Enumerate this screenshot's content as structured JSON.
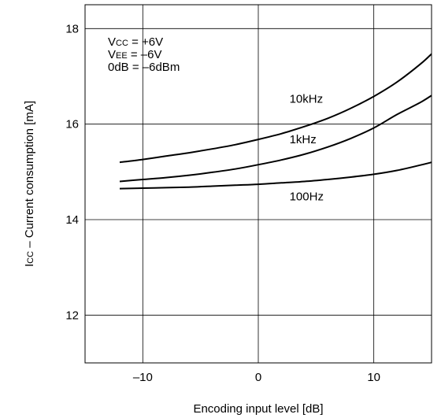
{
  "chart_data": {
    "type": "line",
    "title": "",
    "xlabel": "Encoding input level [dB]",
    "ylabel": {
      "symbol": "I",
      "subscript": "CC",
      "text": " – Current consumption [mA]"
    },
    "xlim": [
      -15,
      15
    ],
    "ylim": [
      11,
      18.5
    ],
    "xticks": [
      -10,
      0,
      10
    ],
    "xtick_labels": [
      "–10",
      "0",
      "10"
    ],
    "yticks": [
      12,
      14,
      16,
      18
    ],
    "ytick_labels": [
      "12",
      "14",
      "16",
      "18"
    ],
    "grid": true,
    "conditions": [
      {
        "symbol": "V",
        "subscript": "CC",
        "text": " = +6V"
      },
      {
        "symbol": "V",
        "subscript": "EE",
        "text": " = –6V"
      },
      {
        "symbol": "",
        "subscript": "",
        "text": "0dB = –6dBm"
      }
    ],
    "series": [
      {
        "name": "10kHz",
        "x": [
          -12,
          -10,
          -8,
          -6,
          -4,
          -2,
          0,
          2,
          4,
          6,
          8,
          10,
          12,
          14,
          15
        ],
        "y": [
          15.2,
          15.26,
          15.33,
          15.4,
          15.48,
          15.57,
          15.68,
          15.8,
          15.95,
          16.12,
          16.33,
          16.58,
          16.88,
          17.25,
          17.47
        ]
      },
      {
        "name": "1kHz",
        "x": [
          -12,
          -10,
          -8,
          -6,
          -4,
          -2,
          0,
          2,
          4,
          6,
          8,
          10,
          12,
          14,
          15
        ],
        "y": [
          14.8,
          14.84,
          14.88,
          14.93,
          14.99,
          15.06,
          15.15,
          15.25,
          15.37,
          15.52,
          15.7,
          15.92,
          16.2,
          16.45,
          16.6
        ]
      },
      {
        "name": "100Hz",
        "x": [
          -12,
          -10,
          -8,
          -6,
          -4,
          -2,
          0,
          2,
          4,
          6,
          8,
          10,
          12,
          14,
          15
        ],
        "y": [
          14.65,
          14.66,
          14.67,
          14.68,
          14.7,
          14.72,
          14.74,
          14.77,
          14.8,
          14.84,
          14.89,
          14.95,
          15.03,
          15.14,
          15.2
        ]
      }
    ]
  }
}
